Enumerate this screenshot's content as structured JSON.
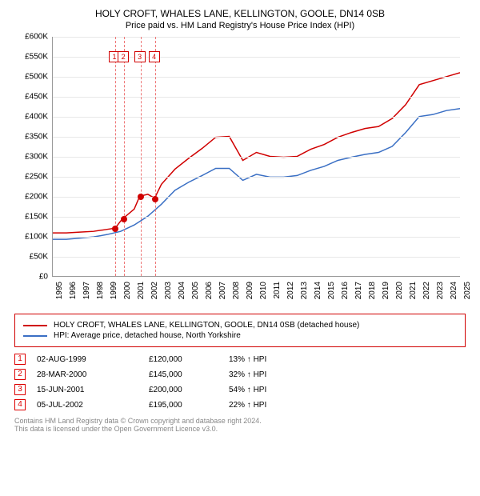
{
  "title": "HOLY CROFT, WHALES LANE, KELLINGTON, GOOLE, DN14 0SB",
  "subtitle": "Price paid vs. HM Land Registry's House Price Index (HPI)",
  "chart": {
    "type": "line",
    "xlim": [
      1995,
      2025
    ],
    "ylim": [
      0,
      600000
    ],
    "ytick_step": 50000,
    "y_prefix": "£",
    "y_suffix": "K",
    "y_divisor": 1000,
    "xtick_step": 1,
    "grid_color": "#e8e8e8",
    "background_color": "#ffffff",
    "axis_fontsize": 10,
    "series": [
      {
        "name": "HOLY CROFT, WHALES LANE, KELLINGTON, GOOLE, DN14 0SB (detached house)",
        "color": "#d00000",
        "line_width": 1.5,
        "x": [
          1995,
          1996,
          1997,
          1998,
          1999,
          1999.6,
          2000,
          2000.2,
          2001,
          2001.4,
          2002,
          2002.5,
          2003,
          2004,
          2005,
          2006,
          2007,
          2008,
          2009,
          2010,
          2011,
          2012,
          2013,
          2014,
          2015,
          2016,
          2017,
          2018,
          2019,
          2020,
          2021,
          2022,
          2023,
          2024,
          2025
        ],
        "y": [
          108000,
          108000,
          110000,
          112000,
          117000,
          120000,
          138000,
          145000,
          168000,
          200000,
          205000,
          195000,
          230000,
          268000,
          295000,
          320000,
          348000,
          350000,
          290000,
          310000,
          300000,
          298000,
          300000,
          318000,
          330000,
          348000,
          360000,
          370000,
          375000,
          395000,
          430000,
          480000,
          490000,
          500000,
          510000
        ]
      },
      {
        "name": "HPI: Average price, detached house, North Yorkshire",
        "color": "#3a6fc4",
        "line_width": 1.5,
        "x": [
          1995,
          1996,
          1997,
          1998,
          1999,
          2000,
          2001,
          2002,
          2003,
          2004,
          2005,
          2006,
          2007,
          2008,
          2009,
          2010,
          2011,
          2012,
          2013,
          2014,
          2015,
          2016,
          2017,
          2018,
          2019,
          2020,
          2021,
          2022,
          2023,
          2024,
          2025
        ],
        "y": [
          92000,
          92000,
          95000,
          98000,
          104000,
          112000,
          128000,
          150000,
          180000,
          215000,
          235000,
          252000,
          270000,
          270000,
          240000,
          255000,
          248000,
          248000,
          252000,
          265000,
          275000,
          290000,
          298000,
          305000,
          310000,
          325000,
          360000,
          400000,
          405000,
          415000,
          420000
        ]
      }
    ],
    "transactions": [
      {
        "n": 1,
        "year": 1999.59,
        "price": 120000
      },
      {
        "n": 2,
        "year": 2000.24,
        "price": 145000
      },
      {
        "n": 3,
        "year": 2001.45,
        "price": 200000
      },
      {
        "n": 4,
        "year": 2002.51,
        "price": 195000
      }
    ],
    "marker_color": "#d00000",
    "marker_box_border": "#d00000",
    "vline_color": "#e77"
  },
  "legend": {
    "border_color": "#d00000",
    "items": [
      {
        "color": "#d00000",
        "label": "HOLY CROFT, WHALES LANE, KELLINGTON, GOOLE, DN14 0SB (detached house)"
      },
      {
        "color": "#3a6fc4",
        "label": "HPI: Average price, detached house, North Yorkshire"
      }
    ]
  },
  "tx_rows": [
    {
      "n": "1",
      "date": "02-AUG-1999",
      "price": "£120,000",
      "delta": "13% ↑ HPI"
    },
    {
      "n": "2",
      "date": "28-MAR-2000",
      "price": "£145,000",
      "delta": "32% ↑ HPI"
    },
    {
      "n": "3",
      "date": "15-JUN-2001",
      "price": "£200,000",
      "delta": "54% ↑ HPI"
    },
    {
      "n": "4",
      "date": "05-JUL-2002",
      "price": "£195,000",
      "delta": "22% ↑ HPI"
    }
  ],
  "footer": {
    "line1": "Contains HM Land Registry data © Crown copyright and database right 2024.",
    "line2": "This data is licensed under the Open Government Licence v3.0."
  }
}
